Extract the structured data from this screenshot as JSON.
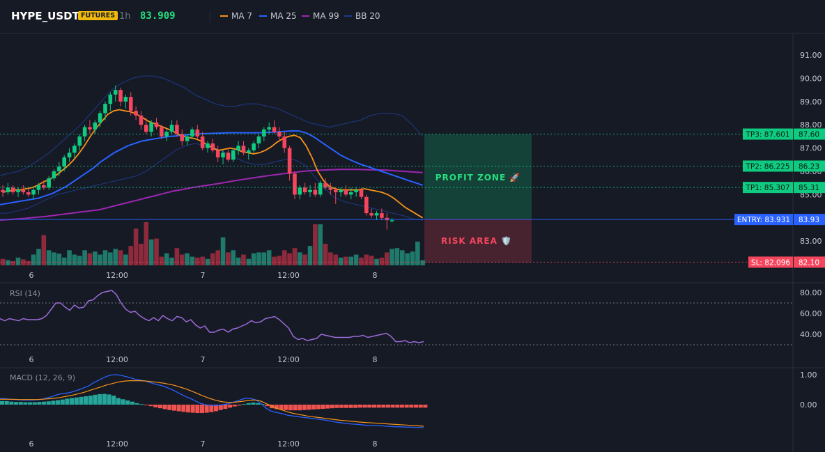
{
  "header": {
    "symbol": "HYPE_USDT",
    "badge": "FUTURES",
    "timeframe": "1h",
    "last_price": "83.909",
    "indicators": [
      {
        "label": "MA 7",
        "color": "#f7931a"
      },
      {
        "label": "MA 25",
        "color": "#2962ff"
      },
      {
        "label": "MA 99",
        "color": "#9c27b0"
      },
      {
        "label": "BB 20",
        "color": "#1e3a8a"
      }
    ]
  },
  "main": {
    "price_ticks": [
      "91.00",
      "90.00",
      "89.00",
      "88.00",
      "87.00",
      "86.00",
      "85.00",
      "84.00",
      "83.00"
    ],
    "price_tick_values": [
      91,
      90,
      89,
      88,
      87,
      86,
      85,
      84,
      83
    ],
    "time_labels": [
      "6",
      "12:00",
      "7",
      "12:00",
      "8"
    ],
    "levels": [
      {
        "label": "TP3: 87.601",
        "price_tag": "87.60",
        "value": 87.601,
        "color": "#0ecb81"
      },
      {
        "label": "TP2: 86.225",
        "price_tag": "86.23",
        "value": 86.225,
        "color": "#0ecb81"
      },
      {
        "label": "TP1: 85.307",
        "price_tag": "85.31",
        "value": 85.307,
        "color": "#0ecb81"
      },
      {
        "label": "ENTRY: 83.931",
        "price_tag": "83.93",
        "value": 83.931,
        "color": "#2962ff"
      },
      {
        "label": "SL: 82.096",
        "price_tag": "82.10",
        "value": 82.096,
        "color": "#f6465d"
      }
    ],
    "profit_zone_label": "PROFIT ZONE 🚀",
    "risk_area_label": "RISK AREA 🛡️"
  },
  "rsi": {
    "title": "RSI (14)",
    "ticks": [
      "80.00",
      "60.00",
      "40.00"
    ],
    "values": [
      55,
      53,
      55,
      54,
      53,
      55,
      54,
      54,
      54,
      55,
      58,
      64,
      70,
      70,
      66,
      63,
      68,
      65,
      66,
      72,
      73,
      77,
      80,
      81,
      82,
      78,
      70,
      64,
      61,
      62,
      58,
      55,
      53,
      56,
      53,
      58,
      55,
      53,
      57,
      56,
      52,
      54,
      49,
      46,
      48,
      42,
      42,
      44,
      45,
      42,
      45,
      46,
      48,
      50,
      53,
      51,
      52,
      55,
      56,
      57,
      54,
      50,
      46,
      38,
      35,
      36,
      34,
      35,
      36,
      40,
      39,
      38,
      37,
      37,
      37,
      37,
      38,
      38,
      39,
      37,
      38,
      39,
      40,
      41,
      38,
      33,
      33,
      34,
      32,
      33,
      32,
      33
    ]
  },
  "macd": {
    "title": "MACD (12, 26, 9)",
    "ticks": [
      "1.00",
      "0.00"
    ],
    "macd": [
      0.2,
      0.2,
      0.18,
      0.17,
      0.16,
      0.15,
      0.15,
      0.15,
      0.16,
      0.18,
      0.22,
      0.26,
      0.32,
      0.36,
      0.38,
      0.4,
      0.45,
      0.5,
      0.56,
      0.62,
      0.72,
      0.8,
      0.88,
      0.95,
      0.99,
      1.0,
      0.98,
      0.94,
      0.9,
      0.85,
      0.82,
      0.8,
      0.75,
      0.7,
      0.66,
      0.62,
      0.56,
      0.5,
      0.42,
      0.34,
      0.26,
      0.2,
      0.12,
      0.05,
      0.0,
      -0.02,
      -0.03,
      -0.02,
      0.0,
      0.03,
      0.08,
      0.12,
      0.18,
      0.22,
      0.2,
      0.15,
      0.05,
      -0.1,
      -0.2,
      -0.25,
      -0.28,
      -0.32,
      -0.36,
      -0.38,
      -0.4,
      -0.42,
      -0.44,
      -0.46,
      -0.48,
      -0.5,
      -0.52,
      -0.55,
      -0.58,
      -0.6,
      -0.62,
      -0.64,
      -0.65,
      -0.66,
      -0.68,
      -0.69,
      -0.7,
      -0.7,
      -0.71,
      -0.72,
      -0.73,
      -0.74,
      -0.74,
      -0.75,
      -0.75,
      -0.76,
      -0.76,
      -0.77
    ],
    "signal": [
      0.18,
      0.18,
      0.18,
      0.18,
      0.17,
      0.17,
      0.17,
      0.17,
      0.17,
      0.18,
      0.19,
      0.2,
      0.22,
      0.24,
      0.27,
      0.3,
      0.33,
      0.37,
      0.41,
      0.46,
      0.51,
      0.56,
      0.61,
      0.66,
      0.7,
      0.74,
      0.77,
      0.79,
      0.8,
      0.8,
      0.8,
      0.79,
      0.78,
      0.76,
      0.74,
      0.72,
      0.69,
      0.66,
      0.62,
      0.57,
      0.52,
      0.46,
      0.4,
      0.33,
      0.27,
      0.21,
      0.16,
      0.12,
      0.09,
      0.08,
      0.08,
      0.09,
      0.11,
      0.13,
      0.15,
      0.15,
      0.12,
      0.05,
      -0.02,
      -0.09,
      -0.15,
      -0.2,
      -0.25,
      -0.29,
      -0.32,
      -0.35,
      -0.38,
      -0.4,
      -0.42,
      -0.44,
      -0.46,
      -0.48,
      -0.5,
      -0.52,
      -0.53,
      -0.55,
      -0.56,
      -0.58,
      -0.59,
      -0.6,
      -0.61,
      -0.62,
      -0.63,
      -0.64,
      -0.65,
      -0.66,
      -0.67,
      -0.68,
      -0.69,
      -0.7,
      -0.71,
      -0.72
    ],
    "hist": [
      0.12,
      0.12,
      0.1,
      0.09,
      0.09,
      0.08,
      0.08,
      0.08,
      0.09,
      0.1,
      0.11,
      0.13,
      0.15,
      0.17,
      0.2,
      0.22,
      0.24,
      0.26,
      0.28,
      0.3,
      0.33,
      0.35,
      0.36,
      0.34,
      0.3,
      0.22,
      0.18,
      0.14,
      0.1,
      0.05,
      0.02,
      -0.02,
      -0.05,
      -0.09,
      -0.12,
      -0.15,
      -0.18,
      -0.2,
      -0.22,
      -0.24,
      -0.26,
      -0.27,
      -0.28,
      -0.28,
      -0.27,
      -0.25,
      -0.22,
      -0.18,
      -0.14,
      -0.1,
      -0.06,
      -0.03,
      0.02,
      0.05,
      0.07,
      0.05,
      0.02,
      -0.05,
      -0.12,
      -0.15,
      -0.17,
      -0.18,
      -0.19,
      -0.19,
      -0.19,
      -0.18,
      -0.17,
      -0.16,
      -0.15,
      -0.14,
      -0.13,
      -0.12,
      -0.11,
      -0.11,
      -0.11,
      -0.11,
      -0.11,
      -0.1,
      -0.1,
      -0.1,
      -0.1,
      -0.1,
      -0.1,
      -0.1,
      -0.1,
      -0.1,
      -0.1,
      -0.1,
      -0.1,
      -0.1,
      -0.1,
      -0.1
    ]
  },
  "candles": [
    [
      85.2,
      85.4,
      84.9,
      85.1
    ],
    [
      85.1,
      85.5,
      85.0,
      85.3
    ],
    [
      85.3,
      85.4,
      85.0,
      85.1
    ],
    [
      85.1,
      85.3,
      84.9,
      85.2
    ],
    [
      85.2,
      85.4,
      85.0,
      85.1
    ],
    [
      85.1,
      85.3,
      84.9,
      85.0
    ],
    [
      85.0,
      85.3,
      84.8,
      85.2
    ],
    [
      85.2,
      85.5,
      85.0,
      85.4
    ],
    [
      85.4,
      85.6,
      85.2,
      85.3
    ],
    [
      85.3,
      85.8,
      85.2,
      85.7
    ],
    [
      85.7,
      86.1,
      85.6,
      86.0
    ],
    [
      86.0,
      86.4,
      85.8,
      86.2
    ],
    [
      86.2,
      86.7,
      86.0,
      86.6
    ],
    [
      86.6,
      87.0,
      86.4,
      86.8
    ],
    [
      86.8,
      87.2,
      86.6,
      87.1
    ],
    [
      87.1,
      87.6,
      86.9,
      87.5
    ],
    [
      87.5,
      88.0,
      87.3,
      87.9
    ],
    [
      87.9,
      88.2,
      87.6,
      87.8
    ],
    [
      87.8,
      88.2,
      87.6,
      88.1
    ],
    [
      88.1,
      88.6,
      87.9,
      88.5
    ],
    [
      88.5,
      89.0,
      88.2,
      88.9
    ],
    [
      88.9,
      89.4,
      88.6,
      89.3
    ],
    [
      89.3,
      89.7,
      89.0,
      89.5
    ],
    [
      89.5,
      89.6,
      88.8,
      89.0
    ],
    [
      89.0,
      89.3,
      88.7,
      89.2
    ],
    [
      89.2,
      89.4,
      88.4,
      88.6
    ],
    [
      88.6,
      88.8,
      88.2,
      88.4
    ],
    [
      88.4,
      88.6,
      87.8,
      88.0
    ],
    [
      88.0,
      88.3,
      87.6,
      87.7
    ],
    [
      87.7,
      88.2,
      87.5,
      88.1
    ],
    [
      88.1,
      88.3,
      87.8,
      87.9
    ],
    [
      87.9,
      88.0,
      87.4,
      87.5
    ],
    [
      87.5,
      87.8,
      87.3,
      87.7
    ],
    [
      87.7,
      88.2,
      87.6,
      88.0
    ],
    [
      88.0,
      88.2,
      87.5,
      87.6
    ],
    [
      87.6,
      87.8,
      87.1,
      87.3
    ],
    [
      87.3,
      87.6,
      87.1,
      87.5
    ],
    [
      87.5,
      87.9,
      87.4,
      87.8
    ],
    [
      87.8,
      88.0,
      87.4,
      87.5
    ],
    [
      87.5,
      87.7,
      86.9,
      87.0
    ],
    [
      87.0,
      87.3,
      86.8,
      87.2
    ],
    [
      87.2,
      87.4,
      86.8,
      86.9
    ],
    [
      86.9,
      87.1,
      86.4,
      86.6
    ],
    [
      86.6,
      86.9,
      86.3,
      86.8
    ],
    [
      86.8,
      87.0,
      86.4,
      86.5
    ],
    [
      86.5,
      87.0,
      86.4,
      86.9
    ],
    [
      86.9,
      87.3,
      86.7,
      87.1
    ],
    [
      87.1,
      87.3,
      86.7,
      86.8
    ],
    [
      86.8,
      87.0,
      86.5,
      86.9
    ],
    [
      86.9,
      87.3,
      86.8,
      87.2
    ],
    [
      87.2,
      87.6,
      87.0,
      87.5
    ],
    [
      87.5,
      87.9,
      87.3,
      87.8
    ],
    [
      87.8,
      88.1,
      87.6,
      87.9
    ],
    [
      87.9,
      88.2,
      87.6,
      87.7
    ],
    [
      87.7,
      87.9,
      87.3,
      87.5
    ],
    [
      87.5,
      87.7,
      86.8,
      87.0
    ],
    [
      87.0,
      87.1,
      85.6,
      85.9
    ],
    [
      85.9,
      86.0,
      84.8,
      85.0
    ],
    [
      85.0,
      85.4,
      84.8,
      85.3
    ],
    [
      85.3,
      85.5,
      85.0,
      85.1
    ],
    [
      85.1,
      85.4,
      84.9,
      85.2
    ],
    [
      85.2,
      85.5,
      84.9,
      85.0
    ],
    [
      85.0,
      85.6,
      84.9,
      85.5
    ],
    [
      85.5,
      85.7,
      85.2,
      85.3
    ],
    [
      85.3,
      85.5,
      85.0,
      85.2
    ],
    [
      85.2,
      85.3,
      84.6,
      85.1
    ],
    [
      85.1,
      85.3,
      84.9,
      85.2
    ],
    [
      85.2,
      85.4,
      84.9,
      85.0
    ],
    [
      85.0,
      85.3,
      84.8,
      85.1
    ],
    [
      85.1,
      85.3,
      84.9,
      85.2
    ],
    [
      85.2,
      85.3,
      84.8,
      84.9
    ],
    [
      84.9,
      85.0,
      84.1,
      84.2
    ],
    [
      84.2,
      84.4,
      84.0,
      84.1
    ],
    [
      84.1,
      84.3,
      83.9,
      84.2
    ],
    [
      84.2,
      84.4,
      83.9,
      84.0
    ],
    [
      84.0,
      84.2,
      83.5,
      83.9
    ],
    [
      83.9,
      84.0,
      83.8,
      83.9
    ]
  ],
  "volumes": [
    0.15,
    0.12,
    0.1,
    0.18,
    0.14,
    0.1,
    0.25,
    0.38,
    0.7,
    0.35,
    0.3,
    0.27,
    0.18,
    0.35,
    0.25,
    0.22,
    0.35,
    0.28,
    0.32,
    0.25,
    0.35,
    0.3,
    0.38,
    0.35,
    0.25,
    0.45,
    0.85,
    0.5,
    1.0,
    0.6,
    0.62,
    0.2,
    0.28,
    0.18,
    0.4,
    0.25,
    0.28,
    0.2,
    0.18,
    0.2,
    0.15,
    0.28,
    0.35,
    0.65,
    0.3,
    0.35,
    0.18,
    0.25,
    0.15,
    0.28,
    0.3,
    0.3,
    0.35,
    0.2,
    0.22,
    0.35,
    0.28,
    0.4,
    0.3,
    0.25,
    0.45,
    0.95,
    0.95,
    0.5,
    0.3,
    0.25,
    0.18,
    0.2,
    0.2,
    0.25,
    0.18,
    0.25,
    0.22,
    0.15,
    0.18,
    0.3,
    0.38,
    0.4,
    0.35,
    0.28,
    0.32,
    0.55,
    0.12
  ],
  "overlay": {
    "ma7": [
      85.1,
      85.15,
      85.2,
      85.2,
      85.25,
      85.3,
      85.4,
      85.55,
      85.65,
      85.8,
      86.0,
      86.2,
      86.45,
      86.75,
      87.1,
      87.5,
      87.85,
      88.15,
      88.45,
      88.6,
      88.65,
      88.6,
      88.55,
      88.45,
      88.3,
      88.15,
      88.05,
      87.95,
      87.85,
      87.75,
      87.6,
      87.5,
      87.45,
      87.4,
      87.3,
      87.15,
      87.0,
      86.9,
      86.95,
      87.0,
      86.95,
      86.85,
      86.8,
      86.75,
      86.8,
      86.9,
      87.05,
      87.25,
      87.4,
      87.5,
      87.55,
      87.45,
      87.1,
      86.6,
      86.0,
      85.6,
      85.35,
      85.25,
      85.2,
      85.2,
      85.2,
      85.2,
      85.25,
      85.2,
      85.15,
      85.1,
      85.0,
      84.85,
      84.65,
      84.45,
      84.3,
      84.15,
      84.0
    ],
    "ma25": [
      84.55,
      84.6,
      84.65,
      84.7,
      84.75,
      84.8,
      84.85,
      84.95,
      85.05,
      85.2,
      85.35,
      85.55,
      85.75,
      85.95,
      86.15,
      86.4,
      86.6,
      86.8,
      86.95,
      87.1,
      87.2,
      87.3,
      87.35,
      87.4,
      87.45,
      87.5,
      87.52,
      87.55,
      87.58,
      87.6,
      87.62,
      87.63,
      87.64,
      87.65,
      87.66,
      87.66,
      87.66,
      87.66,
      87.66,
      87.67,
      87.68,
      87.7,
      87.72,
      87.74,
      87.73,
      87.65,
      87.5,
      87.3,
      87.1,
      86.9,
      86.7,
      86.55,
      86.42,
      86.3,
      86.2,
      86.1,
      86.0,
      85.9,
      85.8,
      85.7,
      85.6,
      85.5,
      85.4
    ],
    "ma99": [
      83.9,
      83.92,
      83.95,
      83.98,
      84.02,
      84.05,
      84.1,
      84.15,
      84.2,
      84.25,
      84.3,
      84.35,
      84.45,
      84.55,
      84.65,
      84.75,
      84.85,
      84.95,
      85.05,
      85.15,
      85.22,
      85.3,
      85.36,
      85.42,
      85.48,
      85.55,
      85.62,
      85.68,
      85.74,
      85.8,
      85.85,
      85.9,
      85.95,
      86.0,
      86.03,
      86.05,
      86.07,
      86.08,
      86.08,
      86.08,
      86.07,
      86.06,
      86.05,
      86.02,
      86.0,
      85.97,
      85.95
    ],
    "bb_upper": [
      85.8,
      85.9,
      86.0,
      86.2,
      86.5,
      86.8,
      87.2,
      87.6,
      88.0,
      88.5,
      89.0,
      89.5,
      89.8,
      90.0,
      90.1,
      90.1,
      90.0,
      89.8,
      89.6,
      89.3,
      89.1,
      88.9,
      88.8,
      88.8,
      88.9,
      88.9,
      88.8,
      88.7,
      88.5,
      88.3,
      88.1,
      88.0,
      87.9,
      88.0,
      88.1,
      88.2,
      88.4,
      88.5,
      88.5,
      88.4,
      88.0,
      87.5
    ],
    "bb_lower": [
      84.2,
      84.2,
      84.3,
      84.4,
      84.6,
      84.8,
      85.0,
      85.1,
      85.2,
      85.3,
      85.4,
      85.5,
      85.6,
      85.7,
      85.8,
      86.0,
      86.3,
      86.6,
      86.9,
      87.1,
      87.2,
      87.1,
      87.0,
      86.8,
      86.6,
      86.4,
      86.3,
      86.3,
      86.4,
      86.5,
      86.5,
      86.3,
      85.8,
      85.3,
      84.9,
      84.7,
      84.6,
      84.5,
      84.4,
      84.3,
      84.2,
      84.1,
      83.95,
      83.9
    ]
  }
}
